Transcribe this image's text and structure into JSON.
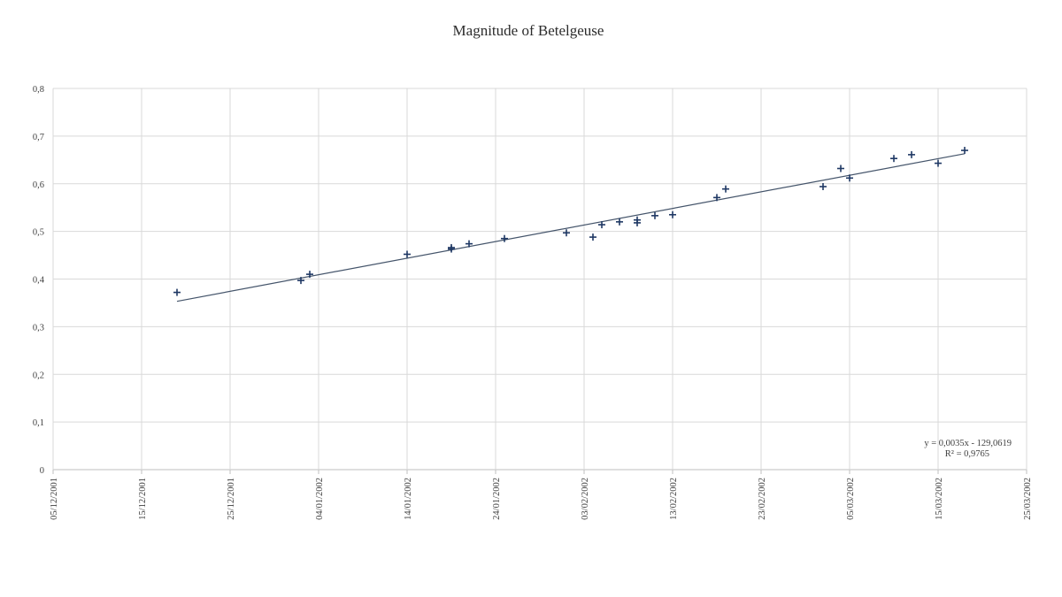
{
  "chart_data": {
    "type": "scatter",
    "title": "Magnitude of Betelgeuse",
    "xlabel": "",
    "ylabel": "",
    "x_scale": "date",
    "xlim": [
      "05/12/2001",
      "25/03/2002"
    ],
    "ylim": [
      0,
      0.8
    ],
    "x_ticks": [
      "05/12/2001",
      "15/12/2001",
      "25/12/2001",
      "04/01/2002",
      "14/01/2002",
      "24/01/2002",
      "03/02/2002",
      "13/02/2002",
      "23/02/2002",
      "05/03/2002",
      "15/03/2002",
      "25/03/2002"
    ],
    "y_ticks": [
      "0",
      "0,1",
      "0,2",
      "0,3",
      "0,4",
      "0,5",
      "0,6",
      "0,7",
      "0,8"
    ],
    "y_tick_values": [
      0,
      0.1,
      0.2,
      0.3,
      0.4,
      0.5,
      0.6,
      0.7,
      0.8
    ],
    "grid": true,
    "legend": "none",
    "marker": "plus",
    "marker_color": "#1f3864",
    "trendline_color": "#44546a",
    "series": [
      {
        "points": [
          {
            "x": "19/12/2001",
            "y": 0.372
          },
          {
            "x": "02/01/2002",
            "y": 0.397
          },
          {
            "x": "03/01/2002",
            "y": 0.41
          },
          {
            "x": "14/01/2002",
            "y": 0.452
          },
          {
            "x": "19/01/2002",
            "y": 0.466
          },
          {
            "x": "19/01/2002",
            "y": 0.463
          },
          {
            "x": "21/01/2002",
            "y": 0.474
          },
          {
            "x": "25/01/2002",
            "y": 0.485
          },
          {
            "x": "01/02/2002",
            "y": 0.497
          },
          {
            "x": "04/02/2002",
            "y": 0.488
          },
          {
            "x": "05/02/2002",
            "y": 0.514
          },
          {
            "x": "07/02/2002",
            "y": 0.52
          },
          {
            "x": "09/02/2002",
            "y": 0.524
          },
          {
            "x": "09/02/2002",
            "y": 0.518
          },
          {
            "x": "11/02/2002",
            "y": 0.533
          },
          {
            "x": "13/02/2002",
            "y": 0.535
          },
          {
            "x": "18/02/2002",
            "y": 0.571
          },
          {
            "x": "19/02/2002",
            "y": 0.589
          },
          {
            "x": "02/03/2002",
            "y": 0.594
          },
          {
            "x": "04/03/2002",
            "y": 0.632
          },
          {
            "x": "05/03/2002",
            "y": 0.612
          },
          {
            "x": "10/03/2002",
            "y": 0.653
          },
          {
            "x": "12/03/2002",
            "y": 0.661
          },
          {
            "x": "15/03/2002",
            "y": 0.643
          },
          {
            "x": "18/03/2002",
            "y": 0.67
          }
        ]
      }
    ],
    "trendline": {
      "type": "linear",
      "x_range": [
        "19/12/2001",
        "18/03/2002"
      ],
      "equation_text": "y = 0,0035x - 129,0619",
      "r2_text": "R² = 0,9765"
    }
  }
}
